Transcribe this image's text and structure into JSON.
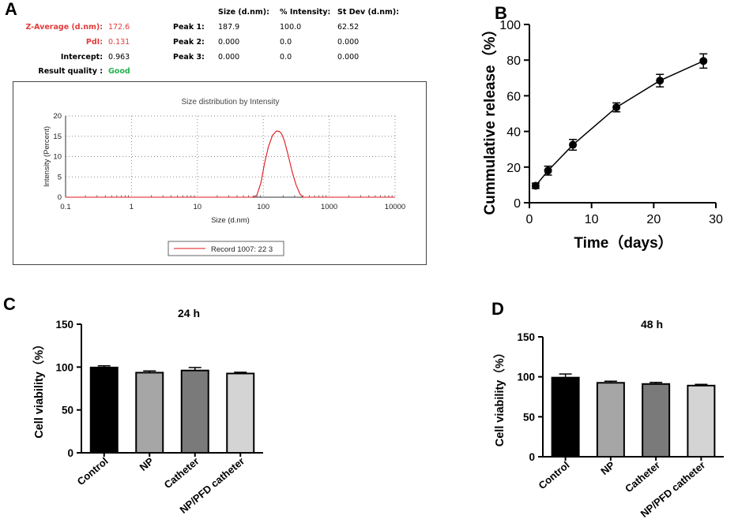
{
  "panels": {
    "a": "A",
    "b": "B",
    "c": "C",
    "d": "D"
  },
  "stats": {
    "col_size": "Size (d.nm):",
    "col_intensity": "% Intensity:",
    "col_stdev": "St Dev (d.nm):",
    "zavg_label": "Z-Average (d.nm):",
    "zavg_value": "172.6",
    "pdi_label": "PdI:",
    "pdi_value": "0.131",
    "intercept_label": "Intercept:",
    "intercept_value": "0.963",
    "quality_label": "Result quality :",
    "quality_value": "Good",
    "label_color": "#e23b3b",
    "good_color": "#22b14c",
    "peaks": [
      {
        "label": "Peak 1:",
        "size": "187.9",
        "intensity": "100.0",
        "stdev": "62.52"
      },
      {
        "label": "Peak 2:",
        "size": "0.000",
        "intensity": "0.0",
        "stdev": "0.000"
      },
      {
        "label": "Peak 3:",
        "size": "0.000",
        "intensity": "0.0",
        "stdev": "0.000"
      }
    ]
  },
  "chart_data": [
    {
      "id": "size_distribution",
      "type": "line",
      "title": "Size distribution by Intensity",
      "xlabel": "Size (d.nm)",
      "ylabel": "Intensity (Percent)",
      "xscale": "log",
      "xlim": [
        0.1,
        10000
      ],
      "ylim": [
        0,
        20
      ],
      "xticks": [
        "0.1",
        "1",
        "10",
        "100",
        "1000",
        "10000"
      ],
      "yticks": [
        "0",
        "5",
        "10",
        "15",
        "20"
      ],
      "grid": true,
      "legend": "Record 1007: 22 3",
      "color": "#e0141e",
      "series": [
        {
          "name": "Record 1007: 22 3",
          "x": [
            0.1,
            70,
            80,
            92,
            105,
            120,
            138,
            158,
            175,
            190,
            210,
            240,
            275,
            315,
            360,
            400,
            10000
          ],
          "y": [
            0,
            0,
            0.5,
            3.5,
            8.5,
            12.5,
            15.2,
            16.3,
            16.2,
            15.6,
            13.8,
            10.2,
            6.2,
            3.0,
            0.8,
            0,
            0
          ]
        }
      ]
    },
    {
      "id": "cumulative_release",
      "type": "line",
      "xlabel": "Time（days）",
      "ylabel": "Cummulative release（%）",
      "xlim": [
        0,
        30
      ],
      "ylim": [
        0,
        100
      ],
      "xticks": [
        "0",
        "10",
        "20",
        "30"
      ],
      "yticks": [
        "0",
        "20",
        "40",
        "60",
        "80",
        "100"
      ],
      "grid": false,
      "series": [
        {
          "name": "release",
          "x": [
            1,
            3,
            7,
            14,
            21,
            28
          ],
          "y": [
            9.5,
            18,
            32.5,
            53.5,
            68.5,
            79.5
          ],
          "err": [
            1.5,
            2.5,
            3,
            2.5,
            3.5,
            4
          ]
        }
      ]
    },
    {
      "id": "viability_24h",
      "type": "bar",
      "title": "24 h",
      "ylabel": "Cell viability（%）",
      "ylim": [
        0,
        150
      ],
      "yticks": [
        "0",
        "50",
        "100",
        "150"
      ],
      "categories": [
        "Control",
        "NP",
        "Catheter",
        "NP/PFD catheter"
      ],
      "values": [
        99.5,
        93.5,
        96,
        92.5
      ],
      "errors": [
        2,
        2,
        3.5,
        1.5
      ],
      "colors": [
        "#000000",
        "#a6a6a6",
        "#7a7a7a",
        "#d4d4d4"
      ]
    },
    {
      "id": "viability_48h",
      "type": "bar",
      "title": "48 h",
      "ylabel": "Cell viability（%）",
      "ylim": [
        0,
        150
      ],
      "yticks": [
        "0",
        "50",
        "100",
        "150"
      ],
      "categories": [
        "Control",
        "NP",
        "Catheter",
        "NP/PFD catheter"
      ],
      "values": [
        99,
        92.5,
        91,
        89
      ],
      "errors": [
        4.5,
        2,
        2,
        1.5
      ],
      "colors": [
        "#000000",
        "#a6a6a6",
        "#7a7a7a",
        "#d4d4d4"
      ]
    }
  ]
}
